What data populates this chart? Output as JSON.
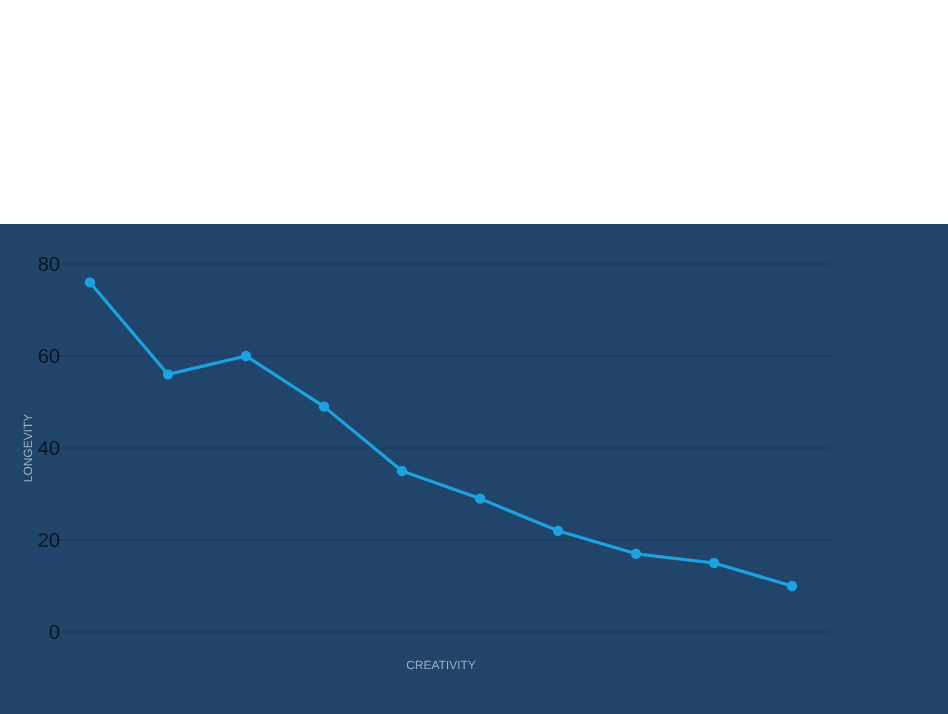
{
  "chart_data": {
    "type": "line",
    "xlabel": "CREATIVITY",
    "ylabel": "LONGEVITY",
    "categories": [
      null,
      null,
      null,
      null,
      null,
      null,
      null,
      null,
      null,
      null
    ],
    "series": [
      {
        "color": "#1aa3e0",
        "values": [
          76,
          56,
          60,
          49,
          35,
          29,
          22,
          17,
          15,
          10
        ]
      }
    ],
    "ylim": [
      0,
      80
    ],
    "yticks": [
      0,
      20,
      40,
      60,
      80
    ],
    "grid": "y",
    "marker": "circle",
    "line_style": "solid",
    "tick_labels": "y"
  }
}
